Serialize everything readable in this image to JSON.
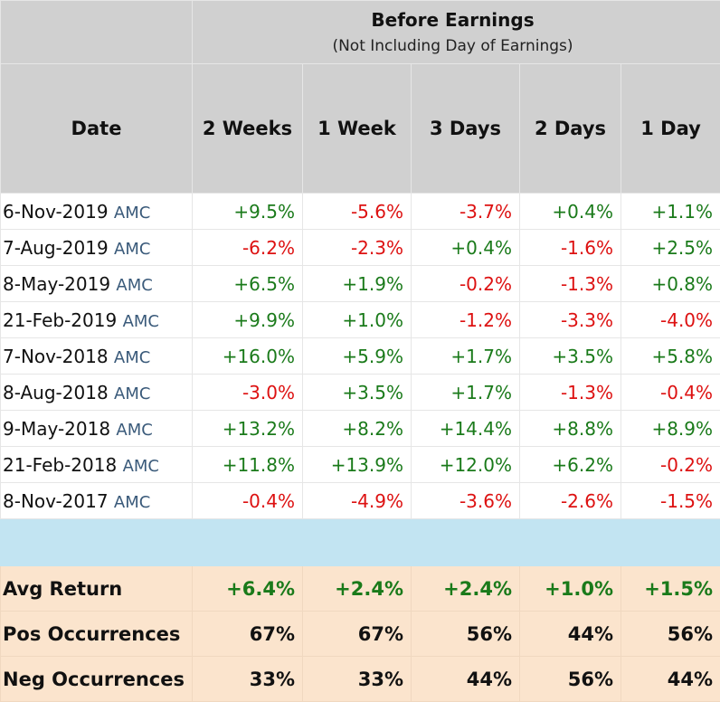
{
  "header": {
    "title": "Before Earnings",
    "subtitle": "(Not Including Day of Earnings)",
    "columns": [
      "Date",
      "2 Weeks",
      "1 Week",
      "3 Days",
      "2 Days",
      "1 Day"
    ]
  },
  "rows": [
    {
      "date": "6-Nov-2019",
      "tag": "AMC",
      "values": [
        "+9.5%",
        "-5.6%",
        "-3.7%",
        "+0.4%",
        "+1.1%"
      ]
    },
    {
      "date": "7-Aug-2019",
      "tag": "AMC",
      "values": [
        "-6.2%",
        "-2.3%",
        "+0.4%",
        "-1.6%",
        "+2.5%"
      ]
    },
    {
      "date": "8-May-2019",
      "tag": "AMC",
      "values": [
        "+6.5%",
        "+1.9%",
        "-0.2%",
        "-1.3%",
        "+0.8%"
      ]
    },
    {
      "date": "21-Feb-2019",
      "tag": "AMC",
      "values": [
        "+9.9%",
        "+1.0%",
        "-1.2%",
        "-3.3%",
        "-4.0%"
      ]
    },
    {
      "date": "7-Nov-2018",
      "tag": "AMC",
      "values": [
        "+16.0%",
        "+5.9%",
        "+1.7%",
        "+3.5%",
        "+5.8%"
      ]
    },
    {
      "date": "8-Aug-2018",
      "tag": "AMC",
      "values": [
        "-3.0%",
        "+3.5%",
        "+1.7%",
        "-1.3%",
        "-0.4%"
      ]
    },
    {
      "date": "9-May-2018",
      "tag": "AMC",
      "values": [
        "+13.2%",
        "+8.2%",
        "+14.4%",
        "+8.8%",
        "+8.9%"
      ]
    },
    {
      "date": "21-Feb-2018",
      "tag": "AMC",
      "values": [
        "+11.8%",
        "+13.9%",
        "+12.0%",
        "+6.2%",
        "-0.2%"
      ]
    },
    {
      "date": "8-Nov-2017",
      "tag": "AMC",
      "values": [
        "-0.4%",
        "-4.9%",
        "-3.6%",
        "-2.6%",
        "-1.5%"
      ]
    }
  ],
  "summary": {
    "avg": {
      "label": "Avg Return",
      "values": [
        "+6.4%",
        "+2.4%",
        "+2.4%",
        "+1.0%",
        "+1.5%"
      ]
    },
    "pos": {
      "label": "Pos Occurrences",
      "values": [
        "67%",
        "67%",
        "56%",
        "44%",
        "56%"
      ]
    },
    "neg": {
      "label": "Neg Occurrences",
      "values": [
        "33%",
        "33%",
        "44%",
        "56%",
        "44%"
      ]
    }
  },
  "colors": {
    "positive": "#1a7a1a",
    "negative": "#dd1111",
    "header_bg": "#d0d0d0",
    "spacer_bg": "#c2e4f2",
    "summary_bg": "#fbe4cd"
  }
}
